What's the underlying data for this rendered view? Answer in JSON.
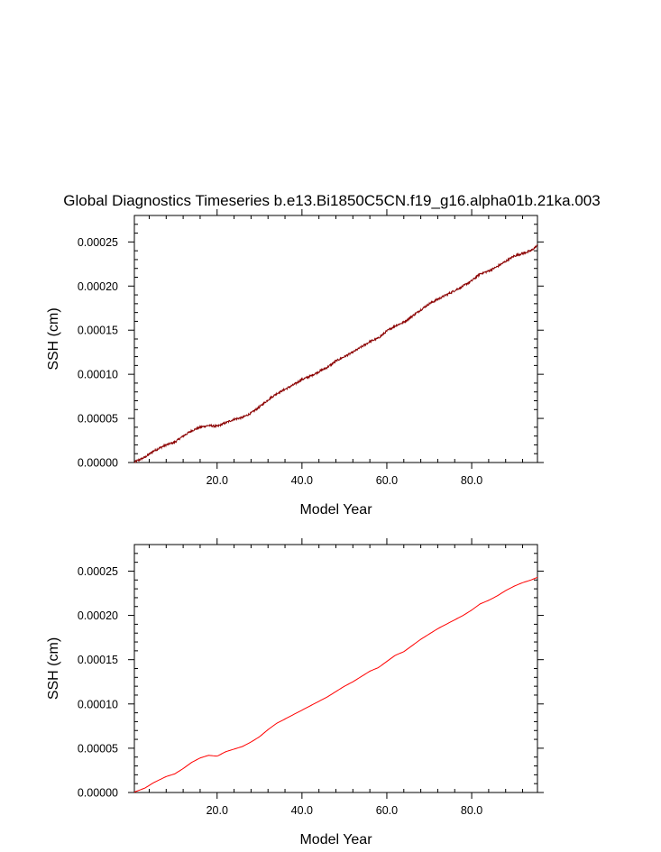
{
  "title": "Global Diagnostics Timeseries b.e13.Bi1850C5CN.f19_g16.alpha01b.21ka.003",
  "chart_data": [
    {
      "type": "line",
      "xlabel": "Model Year",
      "ylabel": "SSH (cm)",
      "xlim": [
        0.5,
        95.5
      ],
      "ylim": [
        0,
        0.00028
      ],
      "xticks": [
        "20.0",
        "40.0",
        "60.0",
        "80.0"
      ],
      "xtick_values": [
        20,
        40,
        60,
        80
      ],
      "yticks": [
        "0.00000",
        "0.00005",
        "0.00010",
        "0.00015",
        "0.00020",
        "0.00025"
      ],
      "ytick_values": [
        0,
        5e-05,
        0.0001,
        0.00015,
        0.0002,
        0.00025
      ],
      "color": "#8b0000",
      "noisy": true,
      "x": [
        0.5,
        3,
        5,
        8,
        10,
        12,
        14,
        16,
        18,
        20,
        22,
        24,
        26,
        28,
        30,
        32,
        34,
        36,
        38,
        40,
        42,
        44,
        46,
        48,
        50,
        52,
        54,
        56,
        58,
        60,
        62,
        64,
        66,
        68,
        70,
        72,
        74,
        76,
        78,
        80,
        82,
        84,
        86,
        88,
        90,
        92,
        94,
        95.5
      ],
      "y": [
        5e-07,
        6e-06,
        1.3e-05,
        2e-05,
        2.3e-05,
        3e-05,
        3.6e-05,
        4e-05,
        4.2e-05,
        4.1e-05,
        4.5e-05,
        4.9e-05,
        5.1e-05,
        5.6e-05,
        6.3e-05,
        7.1e-05,
        7.8e-05,
        8.3e-05,
        8.8e-05,
        9.4e-05,
        9.8e-05,
        0.000103,
        0.000108,
        0.000115,
        0.00012,
        0.000125,
        0.000131,
        0.000137,
        0.000141,
        0.000149,
        0.000155,
        0.000159,
        0.000166,
        0.000173,
        0.00018,
        0.000185,
        0.00019,
        0.000195,
        0.0002,
        0.000206,
        0.000214,
        0.000217,
        0.000222,
        0.000228,
        0.000234,
        0.000237,
        0.00024,
        0.000246
      ]
    },
    {
      "type": "line",
      "xlabel": "Model Year",
      "ylabel": "SSH (cm)",
      "xlim": [
        0.5,
        95.5
      ],
      "ylim": [
        0,
        0.00028
      ],
      "xticks": [
        "20.0",
        "40.0",
        "60.0",
        "80.0"
      ],
      "xtick_values": [
        20,
        40,
        60,
        80
      ],
      "yticks": [
        "0.00000",
        "0.00005",
        "0.00010",
        "0.00015",
        "0.00020",
        "0.00025"
      ],
      "ytick_values": [
        0,
        5e-05,
        0.0001,
        0.00015,
        0.0002,
        0.00025
      ],
      "color": "#ff0000",
      "noisy": false,
      "x": [
        0.5,
        3,
        5,
        8,
        10,
        12,
        14,
        16,
        18,
        20,
        22,
        24,
        26,
        28,
        30,
        32,
        34,
        36,
        38,
        40,
        42,
        44,
        46,
        48,
        50,
        52,
        54,
        56,
        58,
        60,
        62,
        64,
        66,
        68,
        70,
        72,
        74,
        76,
        78,
        80,
        82,
        84,
        86,
        88,
        90,
        92,
        94,
        95.5
      ],
      "y": [
        5e-07,
        5e-06,
        1.1e-05,
        1.8e-05,
        2.1e-05,
        2.7e-05,
        3.4e-05,
        3.9e-05,
        4.2e-05,
        4.1e-05,
        4.6e-05,
        4.9e-05,
        5.2e-05,
        5.7e-05,
        6.3e-05,
        7.1e-05,
        7.8e-05,
        8.3e-05,
        8.8e-05,
        9.3e-05,
        9.8e-05,
        0.000103,
        0.000108,
        0.000114,
        0.00012,
        0.000125,
        0.000131,
        0.000137,
        0.000141,
        0.000148,
        0.000155,
        0.000159,
        0.000166,
        0.000173,
        0.000179,
        0.000185,
        0.00019,
        0.000195,
        0.0002,
        0.000206,
        0.000213,
        0.000217,
        0.000222,
        0.000228,
        0.000233,
        0.000237,
        0.00024,
        0.000243
      ]
    }
  ]
}
